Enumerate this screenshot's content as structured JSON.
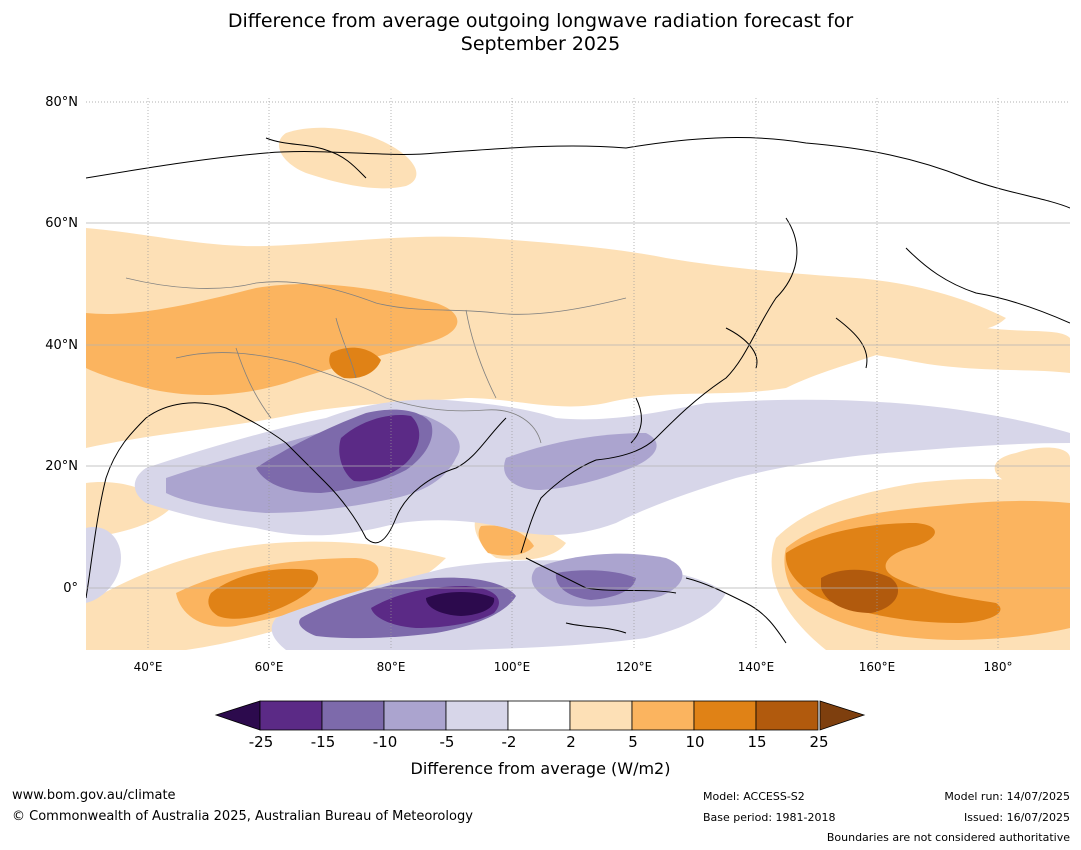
{
  "title_line1": "Difference from average outgoing longwave radiation forecast for",
  "title_line2": "September 2025",
  "lat_labels": [
    "80°N",
    "60°N",
    "40°N",
    "20°N",
    "0°"
  ],
  "lon_labels": [
    "40°E",
    "60°E",
    "80°E",
    "100°E",
    "120°E",
    "140°E",
    "160°E",
    "180°"
  ],
  "colorbar": {
    "ticks": [
      "-25",
      "-15",
      "-10",
      "-5",
      "-2",
      "2",
      "5",
      "10",
      "15",
      "25"
    ],
    "colors": [
      "#2c0a4d",
      "#5b2a86",
      "#7d6aab",
      "#aba4cf",
      "#d7d6e9",
      "#ffffff",
      "#fde0b6",
      "#fbb45f",
      "#e08216",
      "#b15a0d",
      "#7e3f0e"
    ],
    "label": "Difference from average (W/m2)"
  },
  "footer": {
    "website": "www.bom.gov.au/climate",
    "copyright": "© Commonwealth of Australia 2025, Australian Bureau of Meteorology",
    "model": "Model: ACCESS-S2",
    "base_period": "Base period: 1981-2018",
    "model_run": "Model run: 14/07/2025",
    "issued": "Issued: 16/07/2025",
    "disclaimer": "Boundaries are not considered authoritative"
  }
}
